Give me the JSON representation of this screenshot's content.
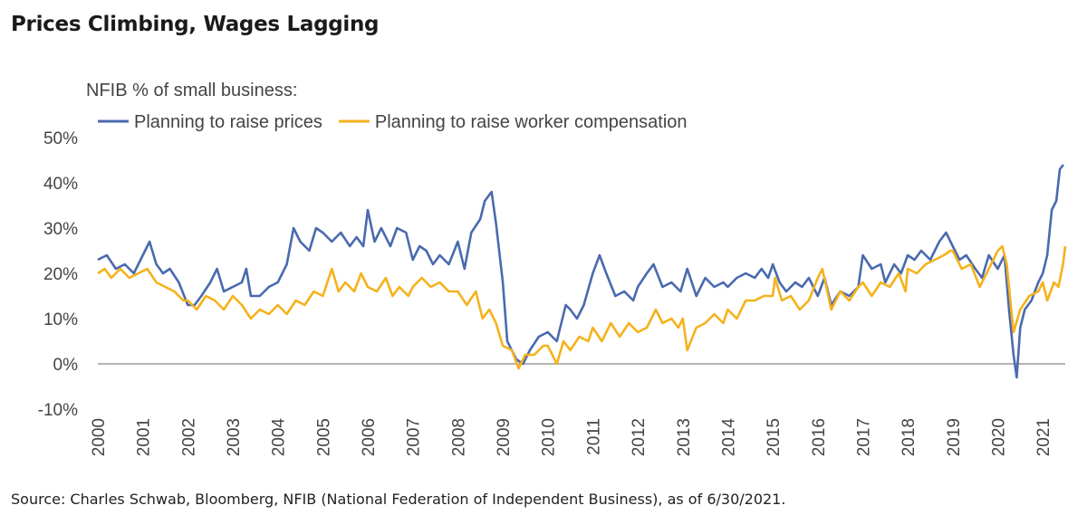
{
  "chart_data": {
    "type": "line",
    "title": "Prices Climbing, Wages Lagging",
    "subtitle": "NFIB % of small business:",
    "source": "Source: Charles Schwab, Bloomberg, NFIB (National Federation of Independent Business), as of 6/30/2021.",
    "xlabel": "",
    "ylabel": "",
    "xlim": [
      2000,
      2021.5
    ],
    "ylim": [
      -10,
      50
    ],
    "y_ticks": [
      -10,
      0,
      10,
      20,
      30,
      40,
      50
    ],
    "y_tick_labels": [
      "-10%",
      "0%",
      "10%",
      "20%",
      "30%",
      "40%",
      "50%"
    ],
    "x_tick_labels": [
      "2000",
      "2001",
      "2002",
      "2003",
      "2004",
      "2005",
      "2006",
      "2007",
      "2008",
      "2009",
      "2010",
      "2011",
      "2012",
      "2013",
      "2014",
      "2015",
      "2016",
      "2017",
      "2018",
      "2019",
      "2020",
      "2021"
    ],
    "legend_position": "top-left",
    "series": [
      {
        "name": "Planning to raise prices",
        "color": "#4a6aae",
        "points": [
          [
            2000.0,
            23
          ],
          [
            2000.2,
            24
          ],
          [
            2000.4,
            21
          ],
          [
            2000.6,
            22
          ],
          [
            2000.8,
            20
          ],
          [
            2001.0,
            24
          ],
          [
            2001.15,
            27
          ],
          [
            2001.3,
            22
          ],
          [
            2001.45,
            20
          ],
          [
            2001.6,
            21
          ],
          [
            2001.8,
            18
          ],
          [
            2002.0,
            13
          ],
          [
            2002.15,
            13
          ],
          [
            2002.3,
            15
          ],
          [
            2002.5,
            18
          ],
          [
            2002.65,
            21
          ],
          [
            2002.8,
            16
          ],
          [
            2003.0,
            17
          ],
          [
            2003.2,
            18
          ],
          [
            2003.3,
            21
          ],
          [
            2003.4,
            15
          ],
          [
            2003.6,
            15
          ],
          [
            2003.8,
            17
          ],
          [
            2004.0,
            18
          ],
          [
            2004.2,
            22
          ],
          [
            2004.35,
            30
          ],
          [
            2004.5,
            27
          ],
          [
            2004.7,
            25
          ],
          [
            2004.85,
            30
          ],
          [
            2005.0,
            29
          ],
          [
            2005.2,
            27
          ],
          [
            2005.4,
            29
          ],
          [
            2005.6,
            26
          ],
          [
            2005.75,
            28
          ],
          [
            2005.9,
            26
          ],
          [
            2006.0,
            34
          ],
          [
            2006.15,
            27
          ],
          [
            2006.3,
            30
          ],
          [
            2006.5,
            26
          ],
          [
            2006.65,
            30
          ],
          [
            2006.85,
            29
          ],
          [
            2007.0,
            23
          ],
          [
            2007.15,
            26
          ],
          [
            2007.3,
            25
          ],
          [
            2007.45,
            22
          ],
          [
            2007.6,
            24
          ],
          [
            2007.8,
            22
          ],
          [
            2008.0,
            27
          ],
          [
            2008.15,
            21
          ],
          [
            2008.3,
            29
          ],
          [
            2008.5,
            32
          ],
          [
            2008.6,
            36
          ],
          [
            2008.75,
            38
          ],
          [
            2008.85,
            31
          ],
          [
            2009.0,
            18
          ],
          [
            2009.1,
            5
          ],
          [
            2009.3,
            1
          ],
          [
            2009.45,
            0
          ],
          [
            2009.6,
            3
          ],
          [
            2009.8,
            6
          ],
          [
            2010.0,
            7
          ],
          [
            2010.2,
            5
          ],
          [
            2010.4,
            13
          ],
          [
            2010.5,
            12
          ],
          [
            2010.65,
            10
          ],
          [
            2010.8,
            13
          ],
          [
            2011.0,
            20
          ],
          [
            2011.15,
            24
          ],
          [
            2011.3,
            20
          ],
          [
            2011.5,
            15
          ],
          [
            2011.7,
            16
          ],
          [
            2011.9,
            14
          ],
          [
            2012.0,
            17
          ],
          [
            2012.2,
            20
          ],
          [
            2012.35,
            22
          ],
          [
            2012.55,
            17
          ],
          [
            2012.75,
            18
          ],
          [
            2012.95,
            16
          ],
          [
            2013.1,
            21
          ],
          [
            2013.3,
            15
          ],
          [
            2013.5,
            19
          ],
          [
            2013.7,
            17
          ],
          [
            2013.9,
            18
          ],
          [
            2014.0,
            17
          ],
          [
            2014.2,
            19
          ],
          [
            2014.4,
            20
          ],
          [
            2014.6,
            19
          ],
          [
            2014.75,
            21
          ],
          [
            2014.9,
            19
          ],
          [
            2015.0,
            22
          ],
          [
            2015.15,
            18
          ],
          [
            2015.3,
            16
          ],
          [
            2015.5,
            18
          ],
          [
            2015.65,
            17
          ],
          [
            2015.8,
            19
          ],
          [
            2016.0,
            15
          ],
          [
            2016.15,
            19
          ],
          [
            2016.3,
            13
          ],
          [
            2016.5,
            16
          ],
          [
            2016.7,
            15
          ],
          [
            2016.9,
            17
          ],
          [
            2017.0,
            24
          ],
          [
            2017.2,
            21
          ],
          [
            2017.4,
            22
          ],
          [
            2017.5,
            18
          ],
          [
            2017.7,
            22
          ],
          [
            2017.85,
            20
          ],
          [
            2018.0,
            24
          ],
          [
            2018.15,
            23
          ],
          [
            2018.3,
            25
          ],
          [
            2018.5,
            23
          ],
          [
            2018.7,
            27
          ],
          [
            2018.85,
            29
          ],
          [
            2019.0,
            26
          ],
          [
            2019.15,
            23
          ],
          [
            2019.3,
            24
          ],
          [
            2019.5,
            21
          ],
          [
            2019.65,
            19
          ],
          [
            2019.8,
            24
          ],
          [
            2020.0,
            21
          ],
          [
            2020.15,
            24
          ],
          [
            2020.25,
            12
          ],
          [
            2020.35,
            2
          ],
          [
            2020.42,
            -3
          ],
          [
            2020.5,
            8
          ],
          [
            2020.6,
            12
          ],
          [
            2020.75,
            14
          ],
          [
            2020.9,
            18
          ],
          [
            2021.0,
            20
          ],
          [
            2021.1,
            24
          ],
          [
            2021.2,
            34
          ],
          [
            2021.3,
            36
          ],
          [
            2021.38,
            43
          ],
          [
            2021.46,
            44
          ]
        ]
      },
      {
        "name": "Planning to raise worker compensation",
        "color": "#f5b21c",
        "points": [
          [
            2000.0,
            20
          ],
          [
            2000.15,
            21
          ],
          [
            2000.3,
            19
          ],
          [
            2000.5,
            21
          ],
          [
            2000.7,
            19
          ],
          [
            2000.9,
            20
          ],
          [
            2001.1,
            21
          ],
          [
            2001.3,
            18
          ],
          [
            2001.5,
            17
          ],
          [
            2001.7,
            16
          ],
          [
            2001.9,
            14
          ],
          [
            2002.0,
            14
          ],
          [
            2002.2,
            12
          ],
          [
            2002.4,
            15
          ],
          [
            2002.6,
            14
          ],
          [
            2002.8,
            12
          ],
          [
            2003.0,
            15
          ],
          [
            2003.2,
            13
          ],
          [
            2003.4,
            10
          ],
          [
            2003.6,
            12
          ],
          [
            2003.8,
            11
          ],
          [
            2004.0,
            13
          ],
          [
            2004.2,
            11
          ],
          [
            2004.4,
            14
          ],
          [
            2004.6,
            13
          ],
          [
            2004.8,
            16
          ],
          [
            2005.0,
            15
          ],
          [
            2005.2,
            21
          ],
          [
            2005.35,
            16
          ],
          [
            2005.5,
            18
          ],
          [
            2005.7,
            16
          ],
          [
            2005.85,
            20
          ],
          [
            2006.0,
            17
          ],
          [
            2006.2,
            16
          ],
          [
            2006.4,
            19
          ],
          [
            2006.55,
            15
          ],
          [
            2006.7,
            17
          ],
          [
            2006.9,
            15
          ],
          [
            2007.0,
            17
          ],
          [
            2007.2,
            19
          ],
          [
            2007.4,
            17
          ],
          [
            2007.6,
            18
          ],
          [
            2007.8,
            16
          ],
          [
            2008.0,
            16
          ],
          [
            2008.2,
            13
          ],
          [
            2008.4,
            16
          ],
          [
            2008.55,
            10
          ],
          [
            2008.7,
            12
          ],
          [
            2008.85,
            9
          ],
          [
            2009.0,
            4
          ],
          [
            2009.2,
            3
          ],
          [
            2009.35,
            -1
          ],
          [
            2009.5,
            2
          ],
          [
            2009.7,
            2
          ],
          [
            2009.9,
            4
          ],
          [
            2010.0,
            4
          ],
          [
            2010.2,
            0
          ],
          [
            2010.35,
            5
          ],
          [
            2010.5,
            3
          ],
          [
            2010.7,
            6
          ],
          [
            2010.9,
            5
          ],
          [
            2011.0,
            8
          ],
          [
            2011.2,
            5
          ],
          [
            2011.4,
            9
          ],
          [
            2011.6,
            6
          ],
          [
            2011.8,
            9
          ],
          [
            2012.0,
            7
          ],
          [
            2012.2,
            8
          ],
          [
            2012.4,
            12
          ],
          [
            2012.55,
            9
          ],
          [
            2012.75,
            10
          ],
          [
            2012.9,
            8
          ],
          [
            2013.0,
            10
          ],
          [
            2013.1,
            3
          ],
          [
            2013.3,
            8
          ],
          [
            2013.5,
            9
          ],
          [
            2013.7,
            11
          ],
          [
            2013.9,
            9
          ],
          [
            2014.0,
            12
          ],
          [
            2014.2,
            10
          ],
          [
            2014.4,
            14
          ],
          [
            2014.6,
            14
          ],
          [
            2014.8,
            15
          ],
          [
            2015.0,
            15
          ],
          [
            2015.05,
            19
          ],
          [
            2015.2,
            14
          ],
          [
            2015.4,
            15
          ],
          [
            2015.6,
            12
          ],
          [
            2015.8,
            14
          ],
          [
            2016.0,
            19
          ],
          [
            2016.1,
            21
          ],
          [
            2016.3,
            12
          ],
          [
            2016.5,
            16
          ],
          [
            2016.7,
            14
          ],
          [
            2016.9,
            17
          ],
          [
            2017.0,
            18
          ],
          [
            2017.2,
            15
          ],
          [
            2017.4,
            18
          ],
          [
            2017.6,
            17
          ],
          [
            2017.8,
            20
          ],
          [
            2017.95,
            16
          ],
          [
            2018.0,
            21
          ],
          [
            2018.2,
            20
          ],
          [
            2018.4,
            22
          ],
          [
            2018.6,
            23
          ],
          [
            2018.8,
            24
          ],
          [
            2018.95,
            25
          ],
          [
            2019.0,
            25
          ],
          [
            2019.2,
            21
          ],
          [
            2019.4,
            22
          ],
          [
            2019.6,
            17
          ],
          [
            2019.8,
            21
          ],
          [
            2020.0,
            25
          ],
          [
            2020.1,
            26
          ],
          [
            2020.2,
            22
          ],
          [
            2020.35,
            7
          ],
          [
            2020.5,
            12
          ],
          [
            2020.7,
            15
          ],
          [
            2020.9,
            16
          ],
          [
            2021.0,
            18
          ],
          [
            2021.1,
            14
          ],
          [
            2021.25,
            18
          ],
          [
            2021.35,
            17
          ],
          [
            2021.45,
            22
          ],
          [
            2021.5,
            26
          ]
        ]
      }
    ]
  }
}
